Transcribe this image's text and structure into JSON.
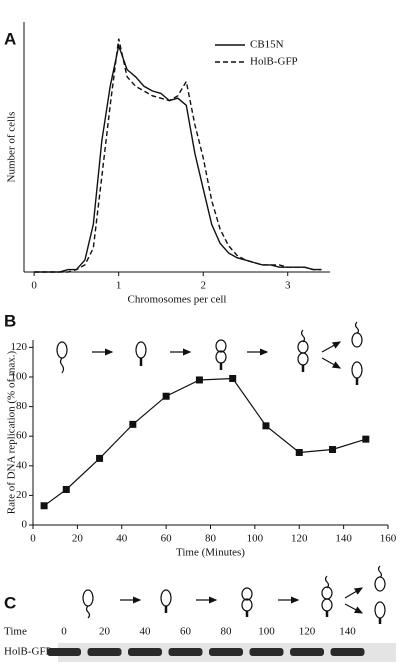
{
  "chart_data": [
    {
      "type": "line",
      "panel": "A",
      "ylabel": "Number of cells",
      "xlabel": "Chromosomes per cell",
      "x": [
        0,
        0.1,
        0.2,
        0.3,
        0.4,
        0.5,
        0.6,
        0.7,
        0.8,
        0.9,
        1.0,
        1.1,
        1.2,
        1.3,
        1.4,
        1.5,
        1.6,
        1.7,
        1.8,
        1.9,
        2.0,
        2.1,
        2.2,
        2.3,
        2.4,
        2.5,
        2.6,
        2.7,
        2.8,
        2.9,
        3.0,
        3.1,
        3.2,
        3.3,
        3.4
      ],
      "series": [
        {
          "name": "CB15N",
          "color": "#111111",
          "dash": false,
          "values": [
            0,
            0,
            0,
            0,
            1,
            1,
            5,
            20,
            55,
            78,
            95,
            85,
            82,
            78,
            76,
            75,
            72,
            73,
            70,
            50,
            35,
            20,
            12,
            8,
            6,
            5,
            4,
            3,
            3,
            2,
            2,
            2,
            2,
            1,
            1
          ]
        },
        {
          "name": "HolB-GFP",
          "color": "#111111",
          "dash": true,
          "values": [
            0,
            0,
            0,
            0,
            0,
            1,
            3,
            10,
            40,
            70,
            98,
            82,
            78,
            76,
            74,
            73,
            72,
            74,
            80,
            62,
            48,
            30,
            18,
            11,
            7,
            5,
            4,
            3,
            3,
            3,
            2,
            2,
            2,
            1,
            1
          ]
        }
      ],
      "xlim": [
        -0.12,
        3.5
      ],
      "ylim": [
        0,
        105
      ],
      "xticks": [
        0,
        1,
        2,
        3
      ]
    },
    {
      "type": "line-markers",
      "panel": "B",
      "ylabel": "Rate of DNA replication (% of max.)",
      "xlabel": "Time (Minutes)",
      "x": [
        5,
        15,
        30,
        45,
        60,
        75,
        90,
        105,
        120,
        135,
        150
      ],
      "values": [
        13,
        24,
        45,
        68,
        87,
        98,
        99,
        67,
        49,
        51,
        58
      ],
      "color": "#111111",
      "xlim": [
        0,
        160
      ],
      "ylim": [
        0,
        125
      ],
      "xticks": [
        0,
        20,
        40,
        60,
        80,
        100,
        120,
        140,
        160
      ],
      "yticks": [
        0,
        20,
        40,
        60,
        80,
        100,
        120
      ]
    },
    {
      "type": "blot",
      "panel": "C",
      "row_title": "Time",
      "lane_label": "HolB-GFP",
      "x": [
        0,
        20,
        40,
        60,
        80,
        100,
        120,
        140
      ]
    }
  ]
}
